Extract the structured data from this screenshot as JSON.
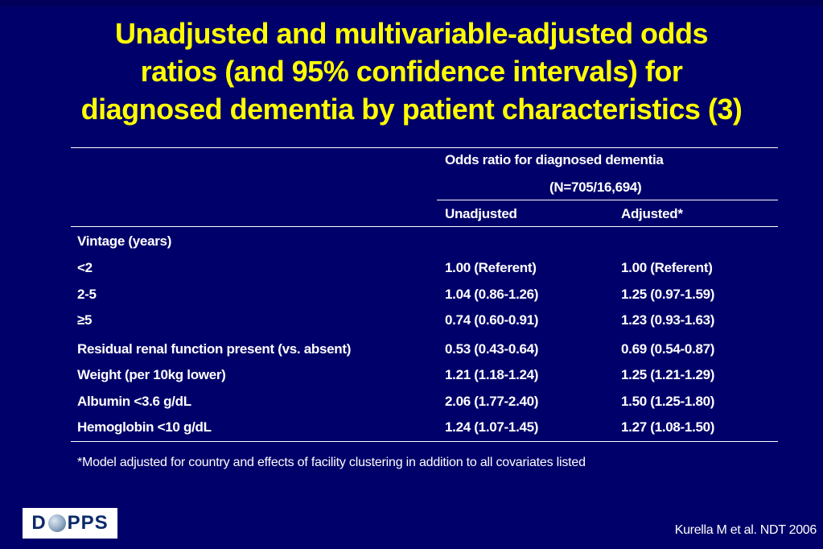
{
  "title": {
    "lines": [
      "Unadjusted and multivariable-adjusted odds",
      "ratios (and 95% confidence intervals) for",
      "diagnosed dementia by patient characteristics (3)"
    ]
  },
  "table": {
    "header": {
      "group_line1": "Odds ratio for diagnosed dementia",
      "group_line2": "(N=705/16,694)",
      "col_unadjusted": "Unadjusted",
      "col_adjusted": "Adjusted*"
    },
    "rows": [
      {
        "label": "Vintage (years)",
        "unadjusted": "",
        "adjusted": ""
      },
      {
        "label": "<2",
        "unadjusted": "1.00 (Referent)",
        "adjusted": "1.00 (Referent)"
      },
      {
        "label": "2-5",
        "unadjusted": "1.04 (0.86-1.26)",
        "adjusted": "1.25 (0.97-1.59)"
      },
      {
        "label": "≥5",
        "unadjusted": "0.74 (0.60-0.91)",
        "adjusted": "1.23 (0.93-1.63)"
      },
      {
        "label": "Residual renal function present (vs. absent)",
        "unadjusted": "0.53 (0.43-0.64)",
        "adjusted": "0.69 (0.54-0.87)"
      },
      {
        "label": "Weight (per 10kg lower)",
        "unadjusted": "1.21 (1.18-1.24)",
        "adjusted": "1.25 (1.21-1.29)"
      },
      {
        "label": "Albumin <3.6 g/dL",
        "unadjusted": "2.06 (1.77-2.40)",
        "adjusted": "1.50 (1.25-1.80)"
      },
      {
        "label": "Hemoglobin <10 g/dL",
        "unadjusted": "1.24 (1.07-1.45)",
        "adjusted": "1.27 (1.08-1.50)"
      }
    ]
  },
  "footnote": "*Model adjusted for country and effects of facility clustering in addition to all covariates listed",
  "logo": {
    "left": "D",
    "right": "PPS"
  },
  "citation": "Kurella M et al. NDT 2006",
  "colors": {
    "background": "#00006a",
    "title": "#ffff00",
    "text": "#ffffff"
  }
}
